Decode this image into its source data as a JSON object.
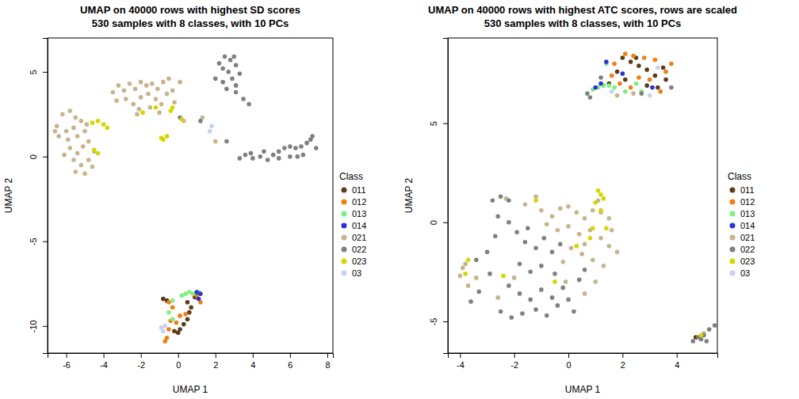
{
  "chart_data": [
    {
      "type": "scatter",
      "title": "UMAP on 40000 rows with highest SD scores",
      "subtitle": "530 samples with 8 classes, with 10 PCs",
      "x_label": "UMAP 1",
      "y_label": "UMAP 2",
      "legend_title": "Class",
      "legend": "right",
      "xlim": [
        -7.0,
        8.3
      ],
      "ylim": [
        -11.6,
        7.0
      ],
      "xticks": [
        -6,
        -4,
        -2,
        0,
        2,
        4,
        6,
        8
      ],
      "yticks": [
        -10,
        -5,
        0,
        5
      ],
      "series": [
        {
          "name": "011",
          "color": "#5c3d1a",
          "x": [
            0,
            0.1,
            0.3,
            0.5,
            0.6,
            0.7,
            0.5,
            -0.8,
            -0.6,
            -0.2,
            0.9
          ],
          "values": [
            -10.4,
            -10.2,
            -9.9,
            -9.6,
            -9.2,
            -8.9,
            -8.6,
            -8.4,
            -8.5,
            -10.3,
            -8.3
          ]
        },
        {
          "name": "012",
          "color": "#f07f14",
          "x": [
            -0.6,
            -0.5,
            -0.4,
            -0.1,
            0.1,
            0.4,
            -0.5,
            -0.3,
            1.2,
            1,
            -0.7
          ],
          "values": [
            -10.7,
            -10.2,
            -9.7,
            -9.8,
            -9.4,
            -9.3,
            -8.6,
            -8.9,
            -8.6,
            -8.2,
            -10.9
          ]
        },
        {
          "name": "013",
          "color": "#7ff07f",
          "x": [
            0.2,
            0.4,
            0.6,
            0.8,
            -0.3,
            -0.5,
            -0.3,
            1.1
          ],
          "values": [
            -8.2,
            -8.1,
            -8.0,
            -8.1,
            -8.5,
            -9.2,
            -9.6,
            -8.0
          ]
        },
        {
          "name": "014",
          "color": "#2f2fd6",
          "x": [
            1.0,
            1.2,
            1.1
          ],
          "values": [
            -8.0,
            -8.1,
            -8.4
          ]
        },
        {
          "name": "021",
          "color": "#c8b48c",
          "x": [
            -6.2,
            -5.8,
            -5.5,
            -6.5,
            -6,
            -5.6,
            -5.2,
            -6.4,
            -5.9,
            -5.4,
            -5,
            -4.9,
            -5.8,
            -5.4,
            -5.1,
            -4.8,
            -5.6,
            -5.2,
            -4.8,
            -4.5,
            -5.5,
            -5,
            -4.6,
            -6.1,
            -6.6,
            -3.5,
            -3.2,
            -2.9,
            -2.6,
            -2.3,
            -2,
            -1.7,
            -1.4,
            -1.1,
            -0.8,
            -0.5,
            -3.3,
            -2.8,
            -2.4,
            -2,
            -1.6,
            -1.2,
            -0.9,
            -0.6,
            -0.3,
            -2.1,
            -1.5,
            -0.2,
            0.1,
            -1,
            -2.2,
            1.3,
            2,
            0.3
          ],
          "values": [
            2.5,
            2.7,
            2.3,
            1.8,
            1.5,
            1.7,
            2.1,
            1.2,
            1.0,
            1.2,
            1.5,
            1.9,
            0.5,
            0.2,
            0.6,
            0.9,
            -0.2,
            -0.5,
            -0.2,
            0.3,
            -0.9,
            -1.0,
            -0.6,
            0.1,
            1.5,
            3.8,
            4.2,
            3.9,
            4.3,
            4.0,
            4.4,
            4.2,
            4.3,
            4.0,
            4.4,
            4.6,
            3.3,
            3.4,
            3.1,
            3.5,
            3.7,
            3.4,
            3.1,
            3.7,
            3.9,
            2.8,
            2.9,
            3.2,
            4.4,
            2.6,
            2.5,
            2.3,
            0.9,
            2.1
          ]
        },
        {
          "name": "022",
          "color": "#808080",
          "x": [
            2.2,
            2.5,
            2.8,
            3,
            2.4,
            2.7,
            3.1,
            2,
            2.4,
            2.9,
            3.3,
            2.6,
            3.1,
            3.5,
            3.8,
            3.1,
            0.1,
            1.2,
            2.6,
            3.3,
            3.6,
            4,
            4.4,
            4.8,
            5.1,
            5.4,
            5.7,
            6,
            6.3,
            6.6,
            6.9,
            7.1,
            7.2,
            7.4,
            6,
            5.4,
            4.6,
            3.9,
            6.7,
            6.4
          ],
          "values": [
            5.5,
            5.9,
            5.7,
            5.9,
            5.2,
            5.0,
            5.4,
            4.6,
            4.4,
            4.6,
            4.9,
            4.0,
            4.2,
            3.4,
            3.1,
            3.8,
            2.3,
            2.1,
            0.9,
            -0.1,
            0.1,
            -0.1,
            0,
            -0.2,
            0.1,
            0.3,
            0.5,
            0.6,
            0.5,
            0.6,
            0.8,
            1.0,
            1.2,
            0.5,
            0.0,
            -0.1,
            0.3,
            0.2,
            0.1,
            0
          ]
        },
        {
          "name": "023",
          "color": "#d6d600",
          "x": [
            -4.3,
            -4,
            -3.8,
            -4.6,
            -4.5,
            -4.3,
            -1.9,
            -1.2,
            -0.9,
            -0.6,
            -0.8,
            -0.4,
            -0.3,
            0.2
          ],
          "values": [
            2.1,
            1.9,
            1.7,
            2,
            0.4,
            0.2,
            2.6,
            2.9,
            1.1,
            1.2,
            1.0,
            2.7,
            2.9,
            2.2
          ]
        },
        {
          "name": "03",
          "color": "#c6d2f0",
          "x": [
            1.8,
            1.7,
            -0.9,
            -0.7,
            -0.8
          ],
          "values": [
            1.8,
            1.5,
            -10.1,
            -10.0,
            -10.3
          ]
        }
      ]
    },
    {
      "type": "scatter",
      "title": "UMAP on 40000 rows with highest ATC scores, rows are scaled",
      "subtitle": "530 samples with 8 classes, with 10 PCs",
      "x_label": "UMAP 1",
      "y_label": "UMAP 2",
      "legend_title": "Class",
      "legend": "right",
      "xlim": [
        -4.45,
        5.5
      ],
      "ylim": [
        -6.6,
        9.3
      ],
      "xticks": [
        -4,
        -2,
        0,
        2,
        4
      ],
      "yticks": [
        -5,
        0,
        5
      ],
      "series": [
        {
          "name": "011",
          "color": "#5c3d1a",
          "x": [
            2,
            2.3,
            2.6,
            2.9,
            3.2,
            3.5,
            2.1,
            1.8,
            2.9,
            3.3,
            1.5,
            3.6,
            2.5,
            4.7
          ],
          "values": [
            8.3,
            8.1,
            7.9,
            7.7,
            7.4,
            7.8,
            7.2,
            7.6,
            6.9,
            6.8,
            7.0,
            7.2,
            8.3,
            -5.8
          ]
        },
        {
          "name": "012",
          "color": "#f07f14",
          "x": [
            2.1,
            2.4,
            2.8,
            3.2,
            3.6,
            3.8,
            1.7,
            2.6,
            3,
            1.9,
            2.3,
            3.4,
            1.6
          ],
          "values": [
            8.5,
            8.4,
            8.3,
            8.2,
            7.6,
            8.0,
            8.0,
            7.3,
            7.2,
            7.0,
            6.8,
            6.6,
            7.4
          ]
        },
        {
          "name": "013",
          "color": "#7ff07f",
          "x": [
            0.9,
            1.1,
            1.3,
            1.5,
            1.7,
            1.4,
            2.1,
            2.5,
            2.7
          ],
          "values": [
            6.7,
            6.8,
            6.9,
            6.9,
            6.8,
            8.0,
            6.6,
            7.0,
            6.6
          ]
        },
        {
          "name": "014",
          "color": "#2f2fd6",
          "x": [
            1.4,
            1.0,
            2.0,
            3.1,
            1.2
          ],
          "values": [
            8.1,
            6.8,
            7.5,
            6.8,
            7.0
          ]
        },
        {
          "name": "021",
          "color": "#c8b48c",
          "x": [
            2.4,
            1.8,
            -1.2,
            -1,
            -0.6,
            -0.3,
            0,
            0.3,
            0.6,
            0.9,
            1.2,
            -0.8,
            -0.4,
            0,
            0.4,
            0.8,
            1.2,
            1.5,
            1.8,
            1.6,
            0.1,
            0.5,
            0.9,
            1.3,
            0.6,
            -3.8,
            -4,
            -3.7,
            -3.4,
            -3.9,
            -2.0,
            -2.6,
            -0.2,
            1.0,
            0.6,
            -2.3,
            -1.6,
            -0.1,
            1.1,
            1.5,
            5.0
          ],
          "values": [
            6.5,
            6.4,
            1.3,
            0.6,
            0.3,
            0.7,
            0.8,
            0.5,
            0.2,
            0.6,
            0.5,
            -0.1,
            -0.4,
            -0.2,
            -0.6,
            -0.4,
            -0.8,
            -1.2,
            -1.5,
            -0.4,
            -1.3,
            -1.6,
            -1.9,
            -2.2,
            -1.1,
            -2.1,
            -2.7,
            -3.2,
            -2.8,
            -2.3,
            -2.8,
            -3.8,
            -2.0,
            -3.0,
            -3.6,
            1.2,
            0.9,
            -3.0,
            1.1,
            0.2,
            -5.6
          ]
        },
        {
          "name": "022",
          "color": "#808080",
          "x": [
            0.7,
            0.8,
            2.7,
            3.8,
            1.2,
            -2.8,
            -2.5,
            -2.2,
            -2.6,
            -2.2,
            -1.9,
            -1.5,
            -1.6,
            -1.2,
            -0.9,
            -0.6,
            -1.8,
            -1.4,
            -1.0,
            -0.5,
            -2.2,
            -1.8,
            -1.4,
            -1.0,
            -0.6,
            -0.2,
            -2.5,
            -2.1,
            -1.7,
            -1.2,
            -0.8,
            -0.4,
            0,
            0.2,
            -2.9,
            -3.3,
            -3.6,
            -3,
            -2.7,
            0.4,
            0.6,
            -0.3,
            -3.4,
            5.2,
            5.4,
            5.0,
            4.9,
            5.1,
            4.8,
            4.6
          ],
          "values": [
            6.5,
            6.3,
            6.5,
            6.8,
            7.3,
            1.1,
            1.3,
            1.1,
            0.3,
            0.0,
            -0.5,
            -0.3,
            -1.0,
            -1.3,
            -0.8,
            -1.5,
            -2.1,
            -2.5,
            -2.2,
            -2.6,
            -3.2,
            -3.6,
            -3.9,
            -3.4,
            -3.8,
            -3.3,
            -4.5,
            -4.8,
            -4.6,
            -4.4,
            -4.7,
            -4.2,
            -3.9,
            -4.5,
            -2.6,
            -3.5,
            -4.0,
            -1.5,
            -0.7,
            -2.9,
            -2.4,
            -1.1,
            -1.9,
            -5.4,
            -5.2,
            -5.7,
            -5.9,
            -6.0,
            -5.8,
            -6.0
          ]
        },
        {
          "name": "023",
          "color": "#d6d600",
          "x": [
            1.1,
            1.2,
            1.3,
            1.0,
            1.2,
            0.9,
            0.8,
            1.4,
            -1.2,
            -2.4,
            -3.7,
            -3.8,
            0.3,
            -0.5,
            4.9
          ],
          "values": [
            1.6,
            1.4,
            1.2,
            1.0,
            0.6,
            -0.3,
            -0.8,
            -0.3,
            1.1,
            -2.7,
            -1.9,
            -2.6,
            -1.2,
            -3.0,
            -5.7
          ]
        },
        {
          "name": "03",
          "color": "#c6d2f0",
          "x": [
            3.0,
            1.6,
            3.3
          ],
          "values": [
            6.4,
            6.6,
            7.8
          ]
        }
      ]
    }
  ]
}
